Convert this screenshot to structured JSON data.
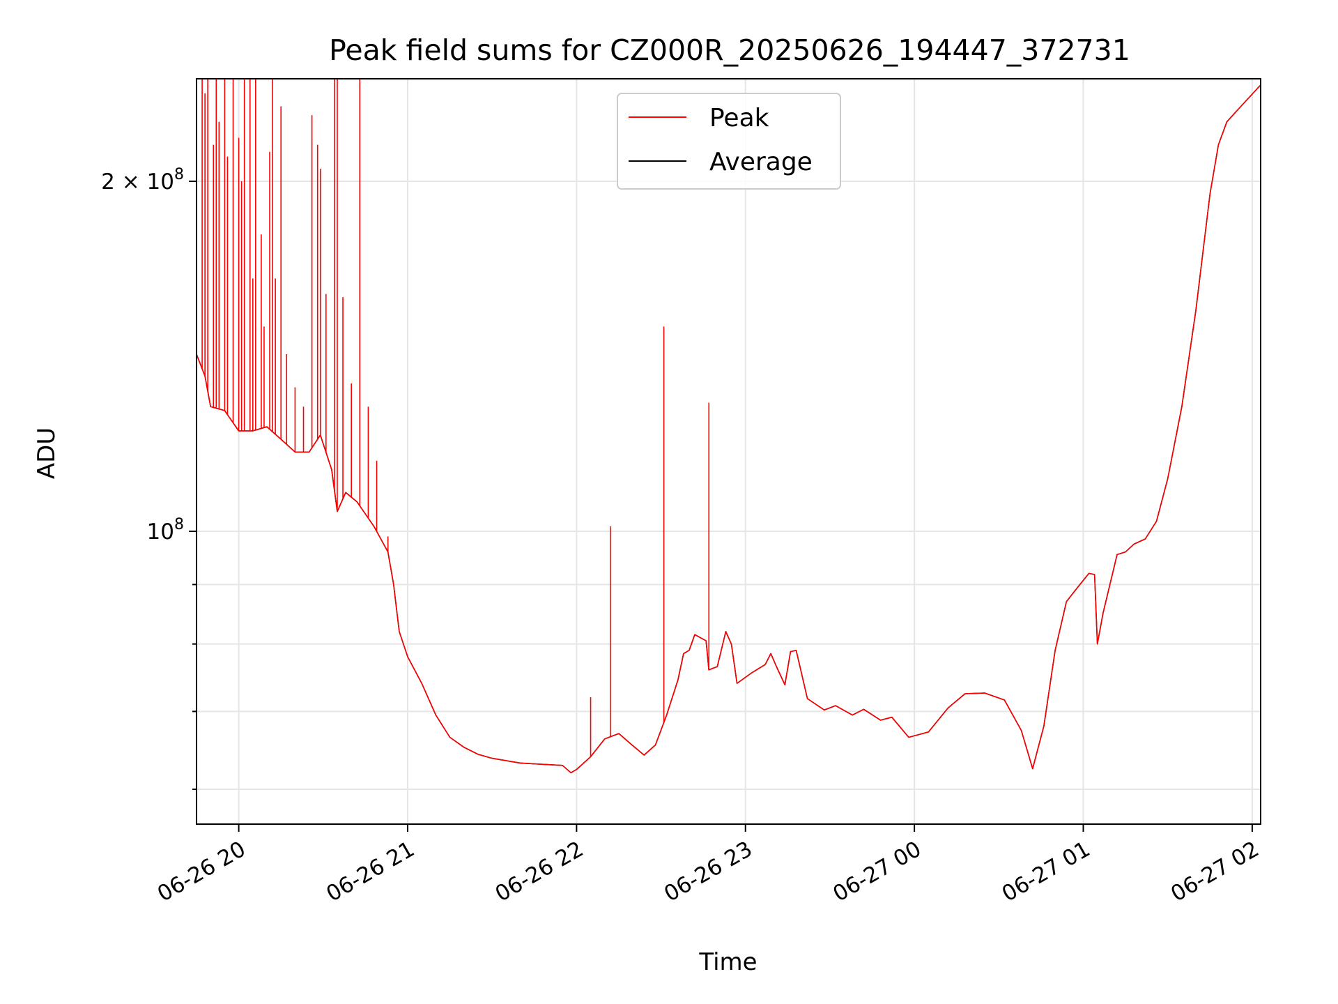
{
  "chart_data": {
    "type": "line",
    "title": "Peak field sums for CZ000R_20250626_194447_372731",
    "xlabel": "Time",
    "ylabel": "ADU",
    "y_scale": "log",
    "xlim": [
      "2025-06-26 19:45",
      "2025-06-27 02:03"
    ],
    "ylim": [
      56000000,
      245000000
    ],
    "grid": true,
    "legend_placement": "top-center",
    "x_ticks": [
      "06-26 20",
      "06-26 21",
      "06-26 22",
      "06-26 23",
      "06-27 00",
      "06-27 01",
      "06-27 02"
    ],
    "x_tick_values": [
      "2025-06-26 20:00",
      "2025-06-26 21:00",
      "2025-06-26 22:00",
      "2025-06-26 23:00",
      "2025-06-27 00:00",
      "2025-06-27 01:00",
      "2025-06-27 02:00"
    ],
    "y_ticks_major": [
      {
        "value": 100000000,
        "label_base": "10",
        "label_exp": "8"
      },
      {
        "value": 200000000,
        "label_base": "2 × 10",
        "label_exp": "8"
      }
    ],
    "y_ticks_minor": [
      60000000,
      70000000,
      80000000,
      90000000
    ],
    "series": [
      {
        "name": "Average",
        "color": "#000000",
        "points": [
          [
            "2025-06-26 19:45",
            142000000
          ],
          [
            "2025-06-26 19:48",
            136000000
          ],
          [
            "2025-06-26 19:50",
            128000000
          ],
          [
            "2025-06-26 19:55",
            127000000
          ],
          [
            "2025-06-26 20:00",
            122000000
          ],
          [
            "2025-06-26 20:05",
            122000000
          ],
          [
            "2025-06-26 20:10",
            123000000
          ],
          [
            "2025-06-26 20:15",
            120000000
          ],
          [
            "2025-06-26 20:20",
            117000000
          ],
          [
            "2025-06-26 20:25",
            117000000
          ],
          [
            "2025-06-26 20:29",
            121000000
          ],
          [
            "2025-06-26 20:33",
            113000000
          ],
          [
            "2025-06-26 20:35",
            104000000
          ],
          [
            "2025-06-26 20:38",
            108000000
          ],
          [
            "2025-06-26 20:42",
            106000000
          ],
          [
            "2025-06-26 20:48",
            101000000
          ],
          [
            "2025-06-26 20:53",
            96000000
          ],
          [
            "2025-06-26 20:55",
            90000000
          ],
          [
            "2025-06-26 20:57",
            82000000
          ],
          [
            "2025-06-26 21:00",
            78000000
          ],
          [
            "2025-06-26 21:05",
            74000000
          ],
          [
            "2025-06-26 21:10",
            69500000
          ],
          [
            "2025-06-26 21:15",
            66500000
          ],
          [
            "2025-06-26 21:20",
            65200000
          ],
          [
            "2025-06-26 21:25",
            64300000
          ],
          [
            "2025-06-26 21:30",
            63800000
          ],
          [
            "2025-06-26 21:40",
            63200000
          ],
          [
            "2025-06-26 21:50",
            63000000
          ],
          [
            "2025-06-26 21:55",
            62900000
          ],
          [
            "2025-06-26 21:58",
            62000000
          ],
          [
            "2025-06-26 22:00",
            62400000
          ],
          [
            "2025-06-26 22:05",
            64000000
          ],
          [
            "2025-06-26 22:10",
            66300000
          ],
          [
            "2025-06-26 22:15",
            67000000
          ],
          [
            "2025-06-26 22:20",
            65400000
          ],
          [
            "2025-06-26 22:24",
            64200000
          ],
          [
            "2025-06-26 22:28",
            65500000
          ],
          [
            "2025-06-26 22:32",
            69500000
          ],
          [
            "2025-06-26 22:36",
            74500000
          ],
          [
            "2025-06-26 22:38",
            78500000
          ],
          [
            "2025-06-26 22:40",
            79000000
          ],
          [
            "2025-06-26 22:42",
            81500000
          ],
          [
            "2025-06-26 22:46",
            80500000
          ],
          [
            "2025-06-26 22:47",
            76000000
          ],
          [
            "2025-06-26 22:50",
            76500000
          ],
          [
            "2025-06-26 22:53",
            82000000
          ],
          [
            "2025-06-26 22:55",
            80000000
          ],
          [
            "2025-06-26 22:57",
            74000000
          ],
          [
            "2025-06-26 23:02",
            75500000
          ],
          [
            "2025-06-26 23:07",
            76800000
          ],
          [
            "2025-06-26 23:09",
            78500000
          ],
          [
            "2025-06-26 23:11",
            76500000
          ],
          [
            "2025-06-26 23:14",
            73800000
          ],
          [
            "2025-06-26 23:16",
            78800000
          ],
          [
            "2025-06-26 23:18",
            79000000
          ],
          [
            "2025-06-26 23:22",
            71800000
          ],
          [
            "2025-06-26 23:28",
            70200000
          ],
          [
            "2025-06-26 23:32",
            70800000
          ],
          [
            "2025-06-26 23:38",
            69500000
          ],
          [
            "2025-06-26 23:42",
            70300000
          ],
          [
            "2025-06-26 23:48",
            68800000
          ],
          [
            "2025-06-26 23:52",
            69200000
          ],
          [
            "2025-06-26 23:58",
            66500000
          ],
          [
            "2025-06-27 00:05",
            67200000
          ],
          [
            "2025-06-27 00:12",
            70500000
          ],
          [
            "2025-06-27 00:18",
            72500000
          ],
          [
            "2025-06-27 00:25",
            72600000
          ],
          [
            "2025-06-27 00:32",
            71600000
          ],
          [
            "2025-06-27 00:38",
            67400000
          ],
          [
            "2025-06-27 00:42",
            62500000
          ],
          [
            "2025-06-27 00:46",
            68000000
          ],
          [
            "2025-06-27 00:50",
            79000000
          ],
          [
            "2025-06-27 00:54",
            87000000
          ],
          [
            "2025-06-27 00:58",
            89500000
          ],
          [
            "2025-06-27 01:02",
            92000000
          ],
          [
            "2025-06-27 01:04",
            91800000
          ],
          [
            "2025-06-27 01:05",
            80000000
          ],
          [
            "2025-06-27 01:07",
            85000000
          ],
          [
            "2025-06-27 01:12",
            95500000
          ],
          [
            "2025-06-27 01:15",
            96000000
          ],
          [
            "2025-06-27 01:18",
            97500000
          ],
          [
            "2025-06-27 01:22",
            98500000
          ],
          [
            "2025-06-27 01:26",
            102000000
          ],
          [
            "2025-06-27 01:30",
            111000000
          ],
          [
            "2025-06-27 01:35",
            128000000
          ],
          [
            "2025-06-27 01:40",
            155000000
          ],
          [
            "2025-06-27 01:45",
            195000000
          ],
          [
            "2025-06-27 01:48",
            215000000
          ],
          [
            "2025-06-27 01:51",
            225000000
          ],
          [
            "2025-06-27 01:56",
            232000000
          ],
          [
            "2025-06-27 02:03",
            242000000
          ]
        ]
      },
      {
        "name": "Peak",
        "color": "#ff0000",
        "spikes": [
          [
            "2025-06-26 19:47",
            245000000
          ],
          [
            "2025-06-26 19:48",
            238000000
          ],
          [
            "2025-06-26 19:49",
            245000000
          ],
          [
            "2025-06-26 19:51",
            215000000
          ],
          [
            "2025-06-26 19:52",
            245000000
          ],
          [
            "2025-06-26 19:53",
            225000000
          ],
          [
            "2025-06-26 19:55",
            245000000
          ],
          [
            "2025-06-26 19:56",
            210000000
          ],
          [
            "2025-06-26 19:58",
            245000000
          ],
          [
            "2025-06-26 20:00",
            218000000
          ],
          [
            "2025-06-26 20:01",
            200000000
          ],
          [
            "2025-06-26 20:02",
            245000000
          ],
          [
            "2025-06-26 20:04",
            245000000
          ],
          [
            "2025-06-26 20:05",
            165000000
          ],
          [
            "2025-06-26 20:06",
            245000000
          ],
          [
            "2025-06-26 20:08",
            180000000
          ],
          [
            "2025-06-26 20:09",
            150000000
          ],
          [
            "2025-06-26 20:11",
            212000000
          ],
          [
            "2025-06-26 20:12",
            245000000
          ],
          [
            "2025-06-26 20:13",
            165000000
          ],
          [
            "2025-06-26 20:15",
            232000000
          ],
          [
            "2025-06-26 20:17",
            142000000
          ],
          [
            "2025-06-26 20:20",
            133000000
          ],
          [
            "2025-06-26 20:23",
            128000000
          ],
          [
            "2025-06-26 20:26",
            228000000
          ],
          [
            "2025-06-26 20:28",
            215000000
          ],
          [
            "2025-06-26 20:29",
            205000000
          ],
          [
            "2025-06-26 20:31",
            160000000
          ],
          [
            "2025-06-26 20:34",
            245000000
          ],
          [
            "2025-06-26 20:35",
            245000000
          ],
          [
            "2025-06-26 20:37",
            159000000
          ],
          [
            "2025-06-26 20:40",
            134000000
          ],
          [
            "2025-06-26 20:43",
            245000000
          ],
          [
            "2025-06-26 20:46",
            128000000
          ],
          [
            "2025-06-26 20:49",
            115000000
          ],
          [
            "2025-06-26 20:53",
            99000000
          ],
          [
            "2025-06-26 21:48",
            63000000
          ],
          [
            "2025-06-26 22:05",
            72000000
          ],
          [
            "2025-06-26 22:12",
            101000000
          ],
          [
            "2025-06-26 22:31",
            150000000
          ],
          [
            "2025-06-26 22:47",
            129000000
          ]
        ]
      }
    ]
  }
}
